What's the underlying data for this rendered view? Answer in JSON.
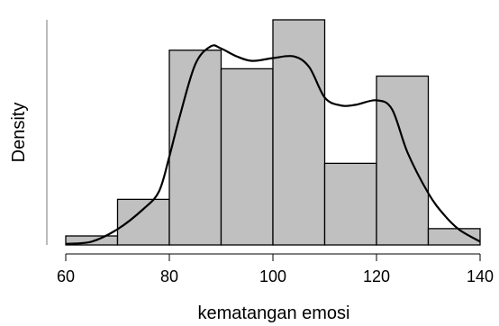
{
  "chart_data": {
    "type": "bar",
    "subtype": "histogram-with-density-curve",
    "title": "",
    "xlabel": "kematangan emosi",
    "ylabel": "Density",
    "xlim": [
      60,
      140
    ],
    "x_ticks": [
      60,
      80,
      100,
      120,
      140
    ],
    "y_ticks_shown": false,
    "bins": [
      {
        "start": 60,
        "end": 70,
        "density": 0.0016
      },
      {
        "start": 70,
        "end": 80,
        "density": 0.0081
      },
      {
        "start": 80,
        "end": 90,
        "density": 0.0346
      },
      {
        "start": 90,
        "end": 100,
        "density": 0.0313
      },
      {
        "start": 100,
        "end": 110,
        "density": 0.04
      },
      {
        "start": 110,
        "end": 120,
        "density": 0.0145
      },
      {
        "start": 120,
        "end": 130,
        "density": 0.03
      },
      {
        "start": 130,
        "end": 140,
        "density": 0.0029
      }
    ],
    "density_curve": {
      "x": [
        60,
        65,
        70,
        75,
        78,
        80,
        82,
        85,
        88,
        90,
        93,
        96,
        100,
        104,
        107,
        110,
        113,
        116,
        120,
        123,
        126,
        130,
        133,
        136,
        140
      ],
      "y": [
        0.0002,
        0.0006,
        0.0028,
        0.0064,
        0.0095,
        0.0157,
        0.0228,
        0.0321,
        0.0353,
        0.0349,
        0.0335,
        0.0327,
        0.0332,
        0.0335,
        0.0316,
        0.0262,
        0.0248,
        0.0249,
        0.0257,
        0.0241,
        0.0164,
        0.0092,
        0.0054,
        0.0027,
        0.0006
      ]
    },
    "colors": {
      "bar_fill": "#c0c0c0",
      "bar_stroke": "#000000",
      "curve": "#000000"
    },
    "grid": false
  }
}
